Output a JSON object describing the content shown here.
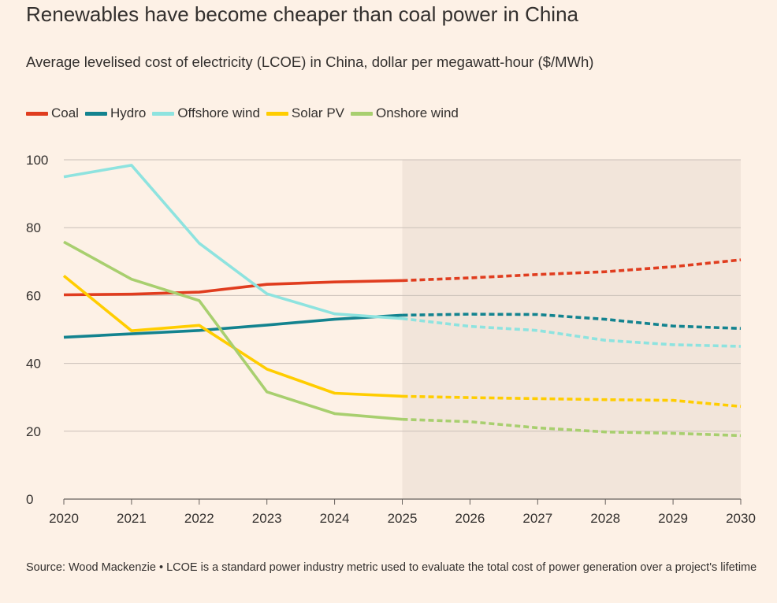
{
  "title": "Renewables have become cheaper than coal power in China",
  "subtitle": "Average levelised cost of electricity (LCOE) in China, dollar per megawatt-hour ($/MWh)",
  "source": "Source: Wood Mackenzie • LCOE is a standard power industry metric used to evaluate the total cost of power generation over a project's lifetime",
  "colors": {
    "background": "#fdf1e6",
    "forecast_shade": "#f2e5da",
    "grid": "#c9c0b8",
    "axis": "#66605c",
    "text": "#33302e"
  },
  "chart_data": {
    "type": "line",
    "x": [
      2020,
      2021,
      2022,
      2023,
      2024,
      2025,
      2026,
      2027,
      2028,
      2029,
      2030
    ],
    "xlim": [
      2020,
      2030
    ],
    "ylim": [
      0,
      100
    ],
    "yticks": [
      0,
      20,
      40,
      60,
      80,
      100
    ],
    "xticks": [
      "2020",
      "2021",
      "2022",
      "2023",
      "2024",
      "2025",
      "2026",
      "2027",
      "2028",
      "2029",
      "2030"
    ],
    "forecast_start": 2025,
    "forecast_style": "dotted",
    "legend_position": "top-left",
    "grid": true,
    "series": [
      {
        "name": "Coal",
        "color": "#e03d1f",
        "values": [
          60.2,
          60.4,
          61.0,
          63.3,
          64.0,
          64.4,
          65.2,
          66.2,
          67.0,
          68.5,
          70.5
        ]
      },
      {
        "name": "Hydro",
        "color": "#13838f",
        "values": [
          47.7,
          48.7,
          49.7,
          51.3,
          53.0,
          54.2,
          54.5,
          54.4,
          53.0,
          51.0,
          50.3
        ]
      },
      {
        "name": "Offshore wind",
        "color": "#8ee3df",
        "values": [
          95.0,
          98.4,
          75.4,
          60.5,
          54.6,
          53.2,
          50.9,
          49.7,
          46.8,
          45.5,
          45.0
        ]
      },
      {
        "name": "Solar PV",
        "color": "#ffcd00",
        "values": [
          65.8,
          49.6,
          51.2,
          38.3,
          31.2,
          30.3,
          29.9,
          29.6,
          29.3,
          29.1,
          27.3
        ]
      },
      {
        "name": "Onshore wind",
        "color": "#a8cf6f",
        "values": [
          75.8,
          64.8,
          58.5,
          31.6,
          25.2,
          23.5,
          22.8,
          21.0,
          19.8,
          19.4,
          18.7
        ]
      }
    ]
  }
}
